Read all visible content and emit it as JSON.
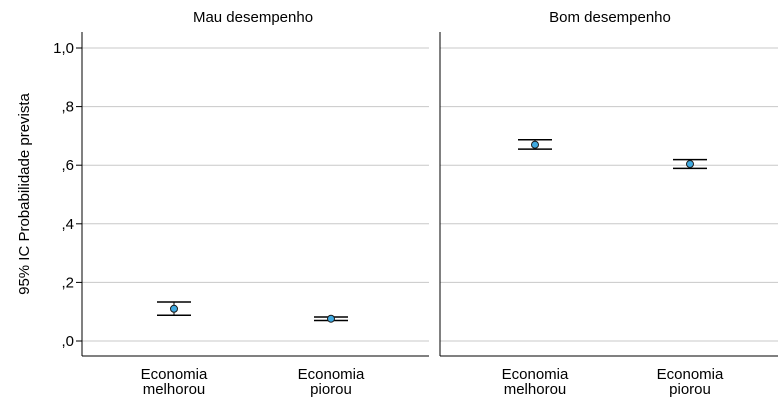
{
  "chart_data": {
    "type": "errorbar",
    "ylabel": "95% IC Probabilidade prevista",
    "ylim": [
      -0.05,
      1.05
    ],
    "yticks": [
      0.0,
      0.2,
      0.4,
      0.6,
      0.8,
      1.0
    ],
    "ytick_labels": [
      ",0",
      ",2",
      ",4",
      ",6",
      ",8",
      "1,0"
    ],
    "grid": true,
    "marker_color": "#3FA9E0",
    "panels": [
      {
        "title": "Mau desempenho",
        "categories": [
          {
            "lines": [
              "Economia",
              "melhorou"
            ]
          },
          {
            "lines": [
              "Economia",
              "piorou"
            ]
          }
        ],
        "points": [
          {
            "mean": 0.11,
            "lower": 0.088,
            "upper": 0.133
          },
          {
            "mean": 0.076,
            "lower": 0.07,
            "upper": 0.082
          }
        ]
      },
      {
        "title": "Bom desempenho",
        "categories": [
          {
            "lines": [
              "Economia",
              "melhorou"
            ]
          },
          {
            "lines": [
              "Economia",
              "piorou"
            ]
          }
        ],
        "points": [
          {
            "mean": 0.67,
            "lower": 0.655,
            "upper": 0.687
          },
          {
            "mean": 0.604,
            "lower": 0.589,
            "upper": 0.619
          }
        ]
      }
    ]
  }
}
